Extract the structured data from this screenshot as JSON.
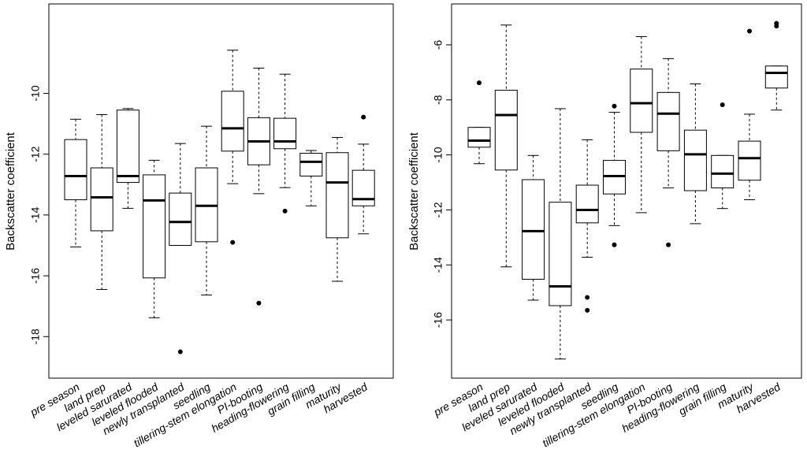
{
  "chart_data": [
    {
      "type": "boxplot",
      "ylabel": "Backscatter coefficient",
      "ylim": [
        -18.9,
        -7.5
      ],
      "yticks": [
        -10,
        -12,
        -14,
        -16,
        -18
      ],
      "categories": [
        "pre season",
        "land prep",
        "leveled sarurated",
        "leveled flooded",
        "newly transplanted",
        "seedling",
        "tillering-stem elongation",
        "PI-booting",
        "heading-flowering",
        "grain filling",
        "maturity",
        "harvested"
      ],
      "boxes": [
        {
          "min": -15.05,
          "q1": -13.5,
          "median": -12.72,
          "q3": -11.52,
          "max": -10.85,
          "outliers": []
        },
        {
          "min": -16.45,
          "q1": -14.52,
          "median": -13.42,
          "q3": -12.45,
          "max": -10.7,
          "outliers": []
        },
        {
          "min": -13.78,
          "q1": -12.93,
          "median": -12.72,
          "q3": -10.55,
          "max": -10.5,
          "outliers": []
        },
        {
          "min": -17.38,
          "q1": -16.07,
          "median": -13.52,
          "q3": -12.68,
          "max": -12.2,
          "outliers": []
        },
        {
          "min": -15.0,
          "q1": -15.0,
          "median": -14.23,
          "q3": -13.28,
          "max": -11.65,
          "outliers": [
            -18.5
          ]
        },
        {
          "min": -16.63,
          "q1": -14.88,
          "median": -13.7,
          "q3": -12.45,
          "max": -11.08,
          "outliers": []
        },
        {
          "min": -12.97,
          "q1": -11.9,
          "median": -11.15,
          "q3": -9.93,
          "max": -8.58,
          "outliers": [
            -14.9
          ]
        },
        {
          "min": -13.3,
          "q1": -12.35,
          "median": -11.58,
          "q3": -10.8,
          "max": -9.17,
          "outliers": [
            -16.9
          ]
        },
        {
          "min": -13.1,
          "q1": -11.82,
          "median": -11.58,
          "q3": -10.82,
          "max": -9.37,
          "outliers": [
            -13.87
          ]
        },
        {
          "min": -13.7,
          "q1": -12.72,
          "median": -12.25,
          "q3": -11.97,
          "max": -11.88,
          "outliers": []
        },
        {
          "min": -16.18,
          "q1": -14.75,
          "median": -12.93,
          "q3": -11.95,
          "max": -11.45,
          "outliers": []
        },
        {
          "min": -14.62,
          "q1": -13.7,
          "median": -13.48,
          "q3": -12.53,
          "max": -11.67,
          "outliers": [
            -10.78
          ]
        }
      ]
    },
    {
      "type": "boxplot",
      "ylabel": "Backscatter coefficient",
      "ylim": [
        -17.6,
        -5.0
      ],
      "yticks": [
        -6,
        -8,
        -10,
        -12,
        -14,
        -16
      ],
      "categories": [
        "pre season",
        "land prep",
        "leveled sarurated",
        "leveled flooded",
        "newly transplanted",
        "seedling",
        "tillering-stem elongation",
        "PI-booting",
        "heading-flowering",
        "grain filling",
        "maturity",
        "harvested"
      ],
      "boxes": [
        {
          "min": -10.32,
          "q1": -9.72,
          "median": -9.48,
          "q3": -9.0,
          "max": -9.0,
          "outliers": [
            -7.38
          ]
        },
        {
          "min": -14.07,
          "q1": -10.55,
          "median": -8.55,
          "q3": -7.65,
          "max": -5.28,
          "outliers": []
        },
        {
          "min": -15.28,
          "q1": -14.52,
          "median": -12.77,
          "q3": -10.9,
          "max": -10.02,
          "outliers": []
        },
        {
          "min": -17.42,
          "q1": -15.48,
          "median": -14.78,
          "q3": -11.72,
          "max": -8.32,
          "outliers": []
        },
        {
          "min": -13.72,
          "q1": -12.47,
          "median": -12.0,
          "q3": -11.1,
          "max": -9.45,
          "outliers": [
            -15.18,
            -15.65
          ]
        },
        {
          "min": -12.57,
          "q1": -11.42,
          "median": -10.77,
          "q3": -10.2,
          "max": -8.45,
          "outliers": [
            -8.23,
            -13.27
          ]
        },
        {
          "min": -12.1,
          "q1": -9.18,
          "median": -8.12,
          "q3": -6.88,
          "max": -5.7,
          "outliers": []
        },
        {
          "min": -11.2,
          "q1": -9.85,
          "median": -8.5,
          "q3": -7.73,
          "max": -6.5,
          "outliers": [
            -13.27
          ]
        },
        {
          "min": -12.5,
          "q1": -11.3,
          "median": -9.98,
          "q3": -9.1,
          "max": -7.42,
          "outliers": []
        },
        {
          "min": -11.95,
          "q1": -11.2,
          "median": -10.68,
          "q3": -10.02,
          "max": -10.02,
          "outliers": [
            -8.18
          ]
        },
        {
          "min": -11.63,
          "q1": -10.92,
          "median": -10.12,
          "q3": -9.5,
          "max": -8.52,
          "outliers": [
            -5.5
          ]
        },
        {
          "min": -8.37,
          "q1": -7.57,
          "median": -7.02,
          "q3": -6.77,
          "max": -6.77,
          "outliers": [
            -5.32,
            -5.22
          ]
        }
      ]
    }
  ]
}
